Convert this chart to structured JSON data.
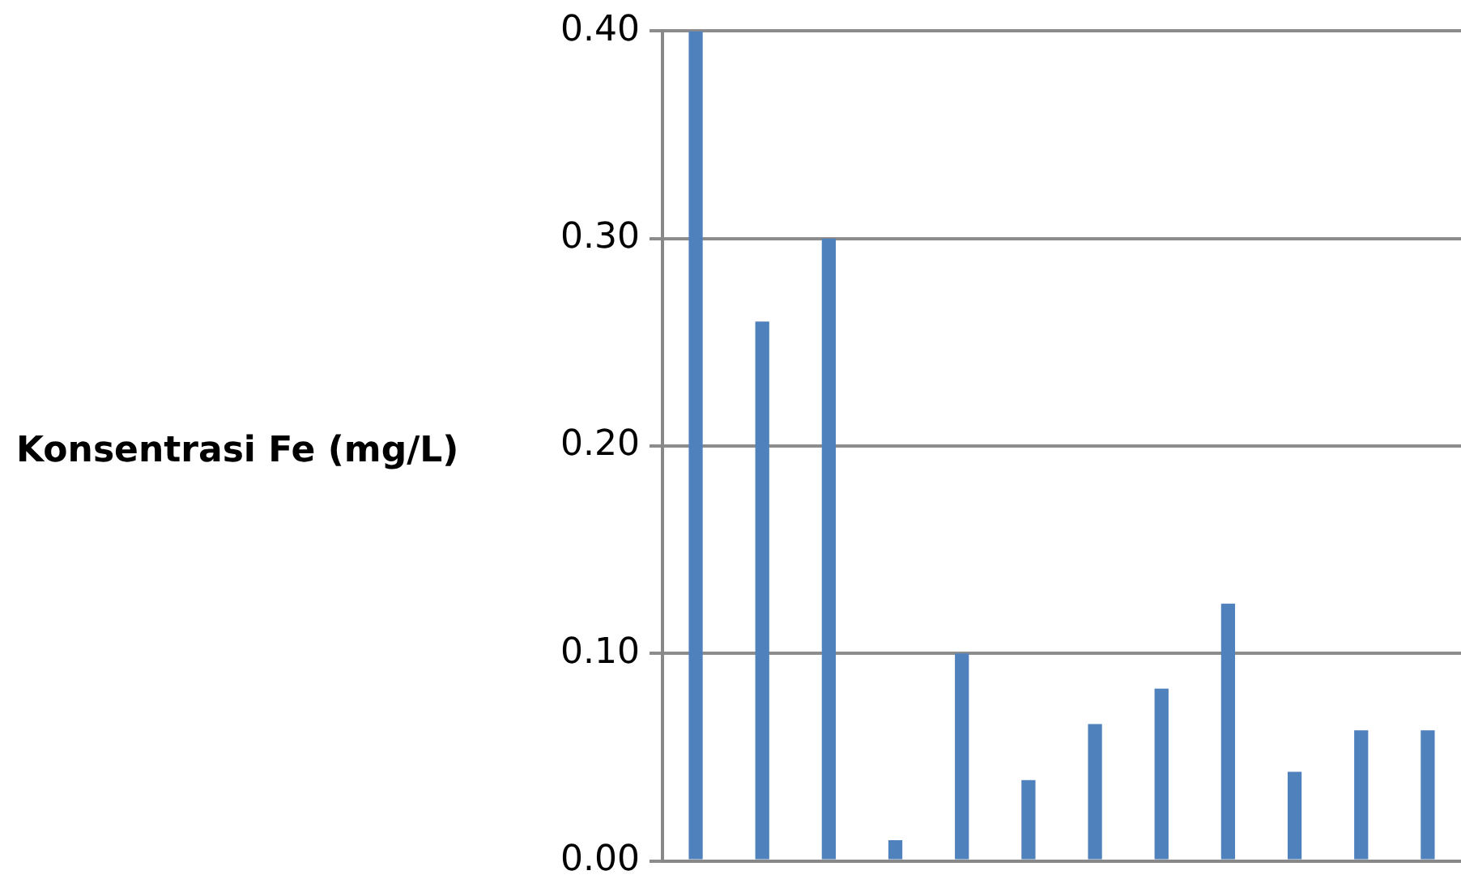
{
  "chart_data": {
    "type": "bar",
    "ylabel": "Konsentrasi Fe (mg/L)",
    "categories": [
      null,
      null,
      null,
      null,
      null,
      null,
      null,
      null,
      null,
      null,
      null,
      null
    ],
    "values": [
      0.4,
      0.26,
      0.3,
      0.01,
      0.1,
      0.039,
      0.066,
      0.083,
      0.124,
      0.043,
      0.063,
      0.063
    ],
    "color": "#4f81bd",
    "ylim": [
      0,
      0.4
    ],
    "yticks": [
      {
        "value": 0,
        "label": "0.00"
      },
      {
        "value": 0.1,
        "label": "0.10"
      },
      {
        "value": 0.2,
        "label": "0.20"
      },
      {
        "value": 0.3,
        "label": "0.30"
      },
      {
        "value": 0.4,
        "label": "0.40"
      }
    ],
    "grid": "y",
    "legend": false
  }
}
